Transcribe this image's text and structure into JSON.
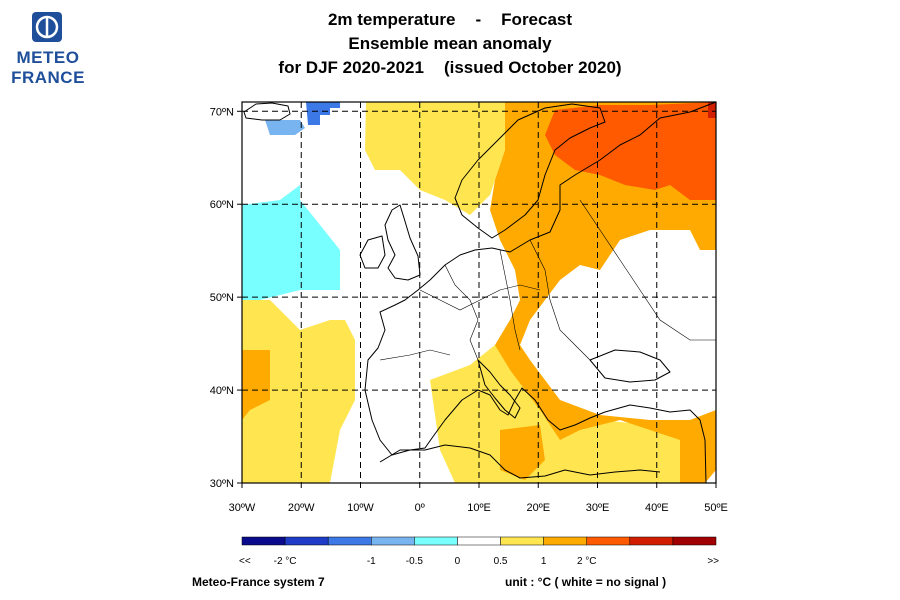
{
  "logo": {
    "line1": "METEO",
    "line2": "FRANCE",
    "icon": "meteo-france-logo-icon",
    "color": "#1f4f9a"
  },
  "title": {
    "line1_a": "2m temperature",
    "line1_sep": "-",
    "line1_b": "Forecast",
    "line2": "Ensemble mean anomaly",
    "line3_a": "for DJF 2020-2021",
    "line3_b": "(issued October 2020)"
  },
  "map": {
    "lon_range": [
      -30,
      50
    ],
    "lat_range": [
      30,
      71
    ],
    "grid": true,
    "lat_ticks": [
      {
        "value": 70,
        "label": "70ºN"
      },
      {
        "value": 60,
        "label": "60ºN"
      },
      {
        "value": 50,
        "label": "50ºN"
      },
      {
        "value": 40,
        "label": "40ºN"
      },
      {
        "value": 30,
        "label": "30ºN"
      }
    ],
    "lon_ticks": [
      {
        "value": -30,
        "label": "30ºW"
      },
      {
        "value": -20,
        "label": "20ºW"
      },
      {
        "value": -10,
        "label": "10ºW"
      },
      {
        "value": 0,
        "label": "0º"
      },
      {
        "value": 10,
        "label": "10ºE"
      },
      {
        "value": 20,
        "label": "20ºE"
      },
      {
        "value": 30,
        "label": "30ºE"
      },
      {
        "value": 40,
        "label": "40ºE"
      },
      {
        "value": 50,
        "label": "50ºE"
      }
    ],
    "anomaly_regions": [
      {
        "category": "1 to 2",
        "lon": [
          24,
          50
        ],
        "lat": [
          57,
          71
        ]
      },
      {
        "category": "-2 to -1",
        "lon": [
          -18,
          -8
        ],
        "lat": [
          67,
          71
        ]
      },
      {
        "category": "-1 to -0.5",
        "lon": [
          -25,
          -18
        ],
        "lat": [
          66,
          69
        ]
      },
      {
        "category": "-0.5 to 0",
        "lon": [
          -30,
          -17
        ],
        "lat": [
          50,
          60
        ]
      },
      {
        "category": "0 to 0.5",
        "lon": [
          -30,
          -10
        ],
        "lat": [
          30,
          48
        ]
      },
      {
        "category": "0.5 to 1",
        "lon": [
          15,
          50
        ],
        "lat": [
          30,
          71
        ]
      }
    ]
  },
  "legend": {
    "colors": [
      "#0a0a8c",
      "#1e3cc8",
      "#3c78e6",
      "#78b4f0",
      "#78ffff",
      "#ffffff",
      "#ffe650",
      "#ffaa00",
      "#ff5a00",
      "#d21e00",
      "#a00000"
    ],
    "labels": [
      {
        "text": "<<",
        "at": "start"
      },
      {
        "text": "-2 °C",
        "at": 1
      },
      {
        "text": "-1",
        "at": 3
      },
      {
        "text": "-0.5",
        "at": 4
      },
      {
        "text": "0",
        "at": 5
      },
      {
        "text": "0.5",
        "at": 6
      },
      {
        "text": "1",
        "at": 7
      },
      {
        "text": "2 °C",
        "at": 8
      },
      {
        "text": ">>",
        "at": "end"
      }
    ]
  },
  "footer": {
    "system": "Meteo-France system 7",
    "unit": "unit :  °C   ( white = no signal )"
  }
}
